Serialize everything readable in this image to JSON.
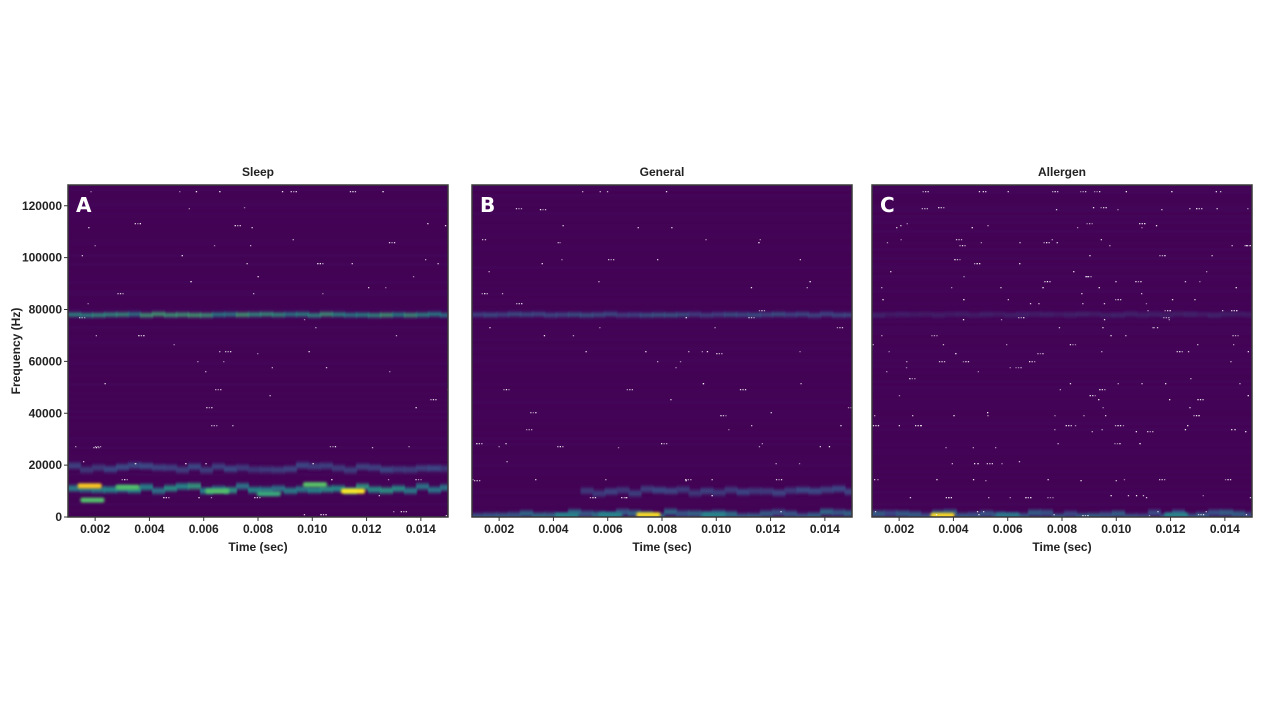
{
  "colors": {
    "background": "#440154",
    "border": "#3a3a3a",
    "cyan": "#2aa6a8",
    "teal": "#21918c",
    "green": "#5ec962",
    "yellow": "#fde725",
    "orange": "#f5a623",
    "dot": "#ffffff"
  },
  "chart_data": [
    {
      "type": "heatmap",
      "panel_label": "A",
      "title": "Sleep",
      "xlabel": "Time (sec)",
      "ylabel": "Frequency (Hz)",
      "xlim": [
        0.001,
        0.015
      ],
      "ylim": [
        0,
        128000
      ],
      "xticks": [
        "0.002",
        "0.004",
        "0.006",
        "0.008",
        "0.010",
        "0.012",
        "0.014"
      ],
      "yticks": [
        "0",
        "20000",
        "40000",
        "60000",
        "80000",
        "100000",
        "120000"
      ],
      "bands": [
        {
          "freq": 78000,
          "intensity": 0.55,
          "x_start": 0.001,
          "x_end": 0.015
        },
        {
          "freq": 11000,
          "intensity": 0.5,
          "x_start": 0.001,
          "x_end": 0.015
        },
        {
          "freq": 19000,
          "intensity": 0.22,
          "x_start": 0.001,
          "x_end": 0.015
        }
      ],
      "hotspots": [
        {
          "time": 0.0018,
          "freq": 12000,
          "intensity": 0.95
        },
        {
          "time": 0.0115,
          "freq": 10000,
          "intensity": 0.9
        },
        {
          "time": 0.0065,
          "freq": 10000,
          "intensity": 0.7
        },
        {
          "time": 0.0032,
          "freq": 11500,
          "intensity": 0.7
        },
        {
          "time": 0.0101,
          "freq": 12500,
          "intensity": 0.72
        },
        {
          "time": 0.0019,
          "freq": 6500,
          "intensity": 0.7
        },
        {
          "time": 0.0084,
          "freq": 9000,
          "intensity": 0.6
        }
      ]
    },
    {
      "type": "heatmap",
      "panel_label": "B",
      "title": "General",
      "xlabel": "Time (sec)",
      "ylabel": "",
      "xlim": [
        0.001,
        0.015
      ],
      "ylim": [
        0,
        128000
      ],
      "xticks": [
        "0.002",
        "0.004",
        "0.006",
        "0.008",
        "0.010",
        "0.012",
        "0.014"
      ],
      "yticks": [],
      "bands": [
        {
          "freq": 78000,
          "intensity": 0.28,
          "x_start": 0.001,
          "x_end": 0.015
        },
        {
          "freq": 10000,
          "intensity": 0.22,
          "x_start": 0.005,
          "x_end": 0.015
        },
        {
          "freq": 1000,
          "intensity": 0.35,
          "x_start": 0.001,
          "x_end": 0.015
        }
      ],
      "hotspots": [
        {
          "time": 0.0075,
          "freq": 800,
          "intensity": 0.92
        },
        {
          "time": 0.0045,
          "freq": 700,
          "intensity": 0.45
        },
        {
          "time": 0.0061,
          "freq": 900,
          "intensity": 0.45
        },
        {
          "time": 0.0099,
          "freq": 800,
          "intensity": 0.45
        }
      ]
    },
    {
      "type": "heatmap",
      "panel_label": "C",
      "title": "Allergen",
      "xlabel": "Time (sec)",
      "ylabel": "",
      "xlim": [
        0.001,
        0.015
      ],
      "ylim": [
        0,
        128000
      ],
      "xticks": [
        "0.002",
        "0.004",
        "0.006",
        "0.008",
        "0.010",
        "0.012",
        "0.014"
      ],
      "yticks": [],
      "bands": [
        {
          "freq": 78000,
          "intensity": 0.12,
          "x_start": 0.001,
          "x_end": 0.015
        },
        {
          "freq": 900,
          "intensity": 0.3,
          "x_start": 0.001,
          "x_end": 0.015
        }
      ],
      "hotspots": [
        {
          "time": 0.0036,
          "freq": 600,
          "intensity": 0.92
        },
        {
          "time": 0.0122,
          "freq": 800,
          "intensity": 0.45
        },
        {
          "time": 0.006,
          "freq": 700,
          "intensity": 0.4
        }
      ]
    }
  ]
}
